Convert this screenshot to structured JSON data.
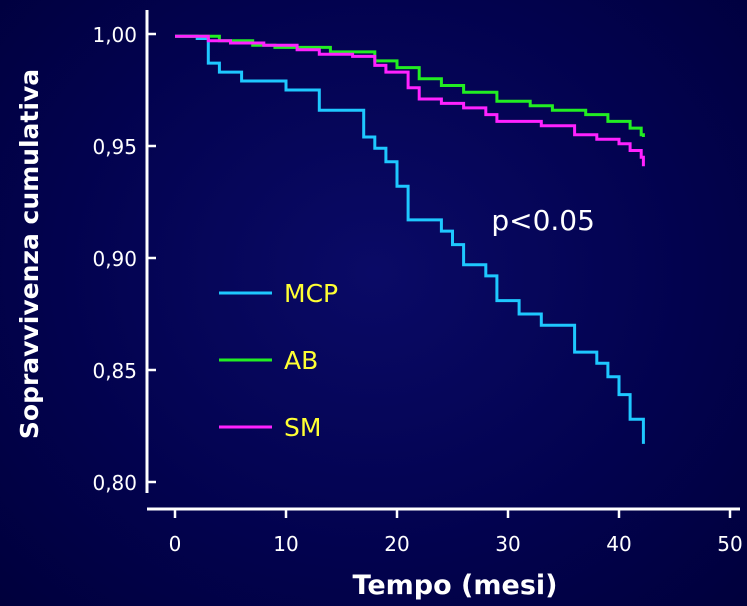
{
  "chart_data": {
    "type": "line",
    "title": "",
    "xlabel": "Tempo (mesi)",
    "ylabel": "Sopravvivenza cumulativa",
    "xlim": [
      0,
      50
    ],
    "ylim": [
      0.8,
      1.0
    ],
    "xticks": [
      0,
      10,
      20,
      30,
      40,
      50
    ],
    "xtick_labels": [
      "0",
      "10",
      "20",
      "30",
      "40",
      "50"
    ],
    "yticks": [
      0.8,
      0.85,
      0.9,
      0.95,
      1.0
    ],
    "ytick_labels": [
      "0,80",
      "0,85",
      "0,90",
      "0,95",
      "1,00"
    ],
    "grid": false,
    "legend_position": "left",
    "step": true,
    "series": [
      {
        "name": "MCP",
        "color": "#1ec8ff",
        "x": [
          0,
          2,
          3,
          4,
          6,
          10,
          13,
          17,
          18,
          19,
          20,
          21,
          22,
          24,
          25,
          26,
          28,
          29,
          31,
          33,
          34,
          36,
          38,
          39,
          40,
          41,
          42,
          42.2
        ],
        "y": [
          0.999,
          0.998,
          0.987,
          0.983,
          0.979,
          0.975,
          0.966,
          0.954,
          0.949,
          0.943,
          0.932,
          0.917,
          0.917,
          0.912,
          0.906,
          0.897,
          0.892,
          0.881,
          0.875,
          0.87,
          0.87,
          0.858,
          0.853,
          0.847,
          0.839,
          0.828,
          0.828,
          0.817
        ]
      },
      {
        "name": "AB",
        "color": "#22ee22",
        "x": [
          0,
          2,
          4,
          7,
          9,
          14,
          18,
          20,
          22,
          24,
          26,
          29,
          32,
          34,
          37,
          39,
          41,
          42,
          42.2
        ],
        "y": [
          0.999,
          0.999,
          0.997,
          0.995,
          0.994,
          0.992,
          0.988,
          0.985,
          0.98,
          0.977,
          0.974,
          0.97,
          0.968,
          0.966,
          0.964,
          0.961,
          0.958,
          0.955,
          0.954
        ]
      },
      {
        "name": "SM",
        "color": "#ff22ff",
        "x": [
          0,
          2,
          3,
          5,
          8,
          11,
          13,
          16,
          18,
          19,
          21,
          22,
          24,
          26,
          28,
          29,
          31,
          33,
          35,
          36,
          38,
          40,
          41,
          42,
          42.2
        ],
        "y": [
          0.999,
          0.999,
          0.997,
          0.996,
          0.995,
          0.993,
          0.991,
          0.99,
          0.986,
          0.983,
          0.976,
          0.971,
          0.969,
          0.967,
          0.964,
          0.961,
          0.961,
          0.959,
          0.959,
          0.955,
          0.953,
          0.951,
          0.948,
          0.945,
          0.941
        ]
      }
    ],
    "annotations": [
      {
        "text": "p<0.05",
        "x": 28.5,
        "y": 0.917
      }
    ]
  }
}
